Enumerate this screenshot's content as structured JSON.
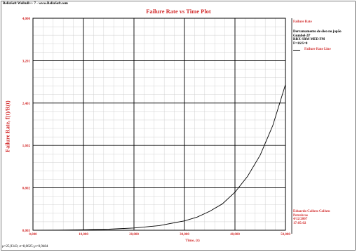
{
  "app_header": "ReliaSoft Weibull++ 7 - www.ReliaSoft.com",
  "footer_params": "μ=25,9343; σ=8,0625; ρ=0,9484",
  "side_panel": {
    "title": "Failure Rate",
    "info_lines": [
      "Derramamento de óleo no japão",
      "Gumbel-2P",
      "RRX SRM MED FM",
      "F=16/S=0"
    ],
    "legend_label": "Failure Rate Line",
    "author": "Eduardo Calixto Calixto",
    "company": "Petrobras",
    "date": "4/12/2007",
    "time": "17:05:02"
  },
  "chart_data": {
    "type": "line",
    "title": "Failure Rate vs Time Plot",
    "xlabel": "Time, (t)",
    "ylabel": "Failure Rate, f(t)/R(t)",
    "xlim": [
      0,
      50000
    ],
    "ylim": [
      0.003,
      4.0
    ],
    "x_ticks": [
      "0,000",
      "10,000",
      "20,000",
      "30,000",
      "40,000",
      "50,000"
    ],
    "y_ticks": [
      "0,003",
      "0,802",
      "1,602",
      "2,401",
      "3,201",
      "4,000"
    ],
    "grid": true,
    "series": [
      {
        "name": "Failure Rate Line",
        "x": [
          0,
          5000,
          10000,
          15000,
          20000,
          25000,
          30000,
          32500,
          35000,
          37500,
          40000,
          42500,
          45000,
          47500,
          50000
        ],
        "y": [
          0.003,
          0.006,
          0.012,
          0.023,
          0.045,
          0.09,
          0.18,
          0.25,
          0.36,
          0.5,
          0.72,
          1.02,
          1.42,
          1.98,
          2.75
        ]
      }
    ],
    "line_color": "#000000",
    "grid_color": "#000000",
    "axis_text_color": "#d32f2f"
  }
}
